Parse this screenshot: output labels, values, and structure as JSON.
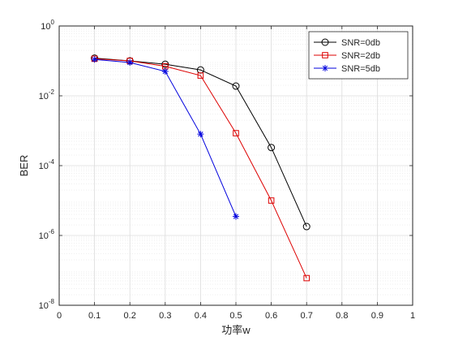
{
  "chart_data": {
    "type": "line",
    "title": "",
    "xlabel": "功率w",
    "ylabel": "BER",
    "xlim": [
      0,
      1
    ],
    "ylim": [
      1e-08,
      1
    ],
    "yscale": "log",
    "grid": true,
    "minor_grid": true,
    "legend_position": "top-right",
    "x_ticks": [
      {
        "value": 0,
        "label": "0"
      },
      {
        "value": 0.1,
        "label": "0.1"
      },
      {
        "value": 0.2,
        "label": "0.2"
      },
      {
        "value": 0.3,
        "label": "0.3"
      },
      {
        "value": 0.4,
        "label": "0.4"
      },
      {
        "value": 0.5,
        "label": "0.5"
      },
      {
        "value": 0.6,
        "label": "0.6"
      },
      {
        "value": 0.7,
        "label": "0.7"
      },
      {
        "value": 0.8,
        "label": "0.8"
      },
      {
        "value": 0.9,
        "label": "0.9"
      },
      {
        "value": 1,
        "label": "1"
      }
    ],
    "y_ticks": [
      {
        "value": 1e-08,
        "base": "10",
        "exp": "-8"
      },
      {
        "value": 1e-06,
        "base": "10",
        "exp": "-6"
      },
      {
        "value": 0.0001,
        "base": "10",
        "exp": "-4"
      },
      {
        "value": 0.01,
        "base": "10",
        "exp": "-2"
      },
      {
        "value": 1,
        "base": "10",
        "exp": "0"
      }
    ],
    "series": [
      {
        "name": "SNR=0db",
        "color": "#000000",
        "marker": "circle",
        "x": [
          0.1,
          0.2,
          0.3,
          0.4,
          0.5,
          0.6,
          0.7
        ],
        "values": [
          0.12,
          0.1,
          0.08,
          0.055,
          0.019,
          0.00033,
          1.8e-06
        ]
      },
      {
        "name": "SNR=2db",
        "color": "#dd0000",
        "marker": "square",
        "x": [
          0.1,
          0.2,
          0.3,
          0.4,
          0.5,
          0.6,
          0.7
        ],
        "values": [
          0.115,
          0.1,
          0.07,
          0.038,
          0.00085,
          1e-05,
          6e-08
        ]
      },
      {
        "name": "SNR=5db",
        "color": "#0000dd",
        "marker": "asterisk",
        "x": [
          0.1,
          0.2,
          0.3,
          0.4,
          0.5
        ],
        "values": [
          0.11,
          0.09,
          0.05,
          0.0008,
          3.5e-06
        ]
      }
    ]
  }
}
